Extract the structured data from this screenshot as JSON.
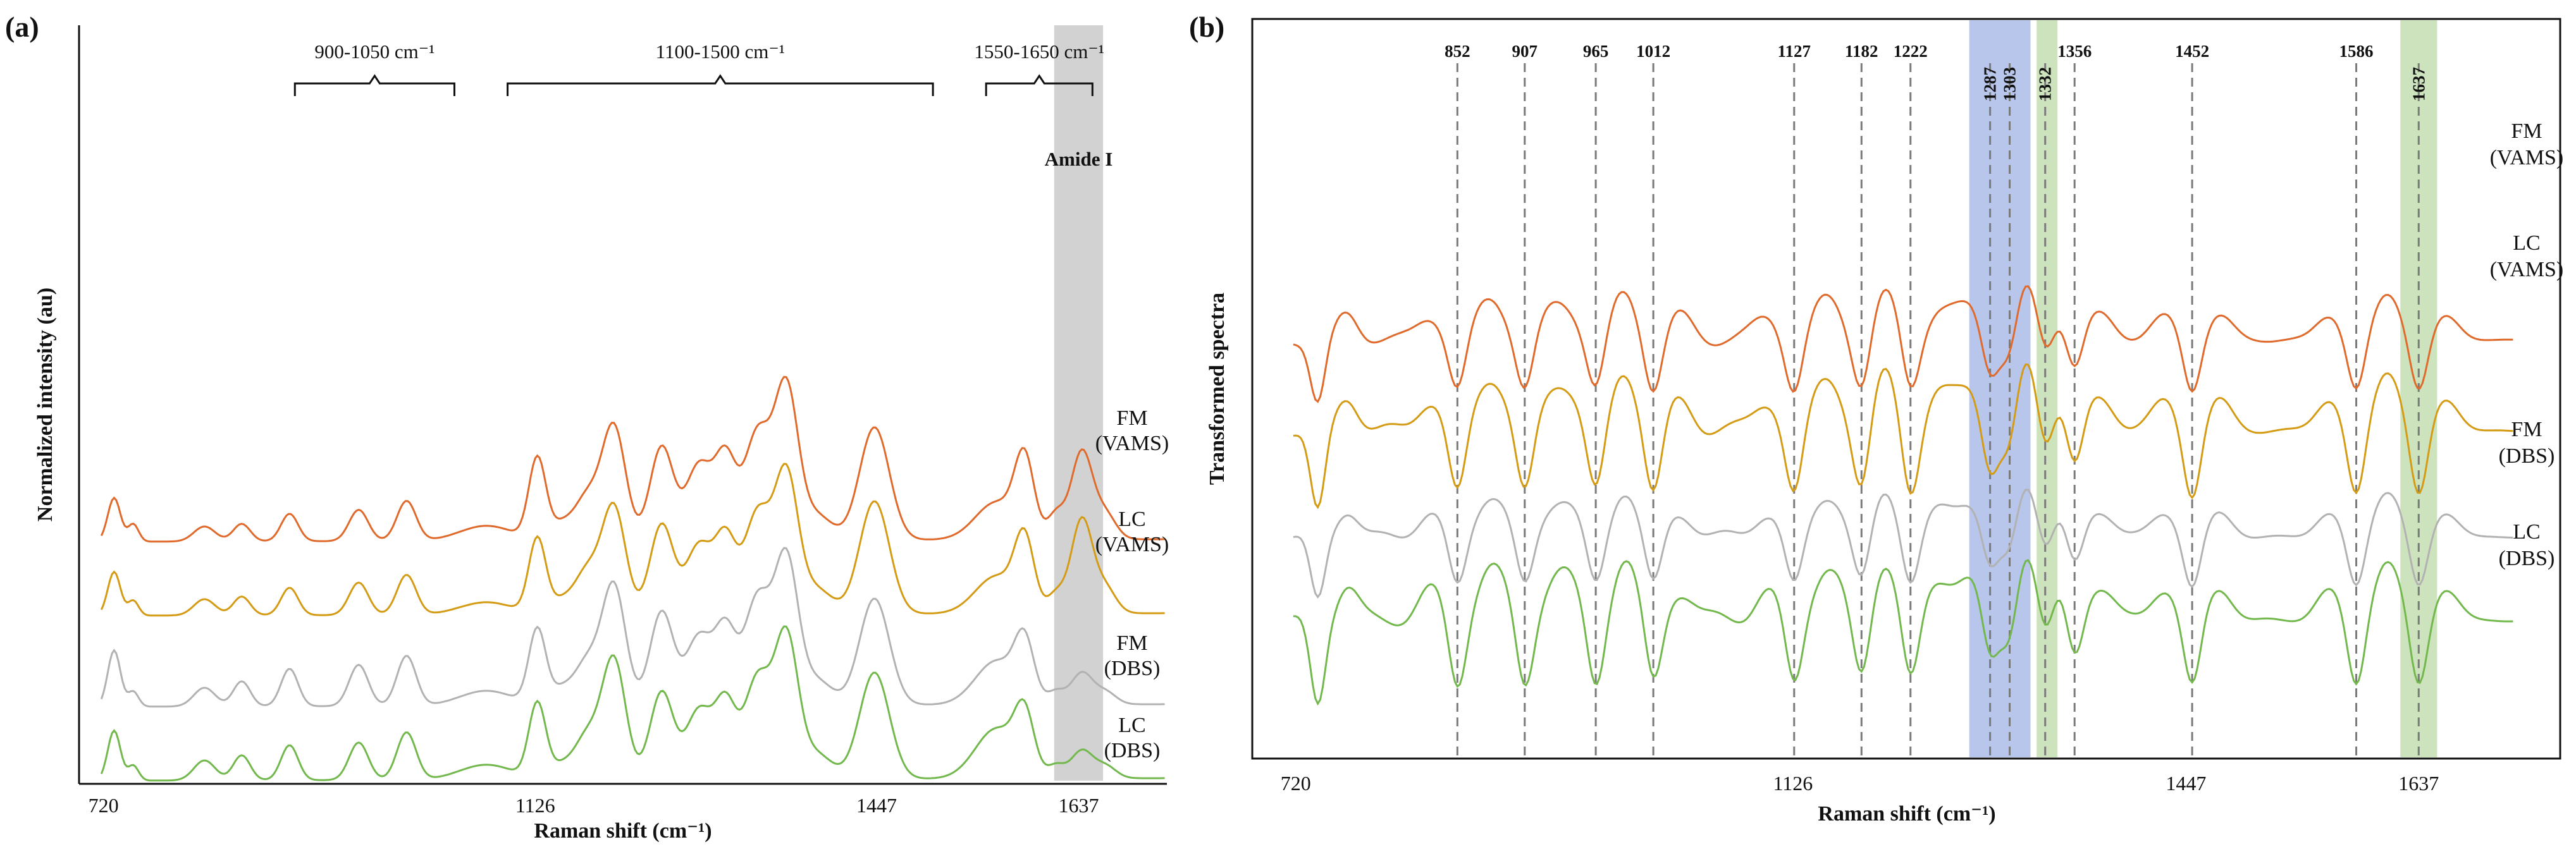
{
  "figure": {
    "panel_a_label": "(a)",
    "panel_b_label": "(b)"
  },
  "colors": {
    "FM_VAMS": "#e06a2c",
    "LC_VAMS": "#d49b15",
    "FM_DBS": "#b2b2b2",
    "LC_DBS": "#72b84c",
    "amide_band": "#d2d2d2",
    "blue_band": "#b7c6ea",
    "green_band": "#cde3bd",
    "guide_line": "#7a7a7a"
  },
  "chart_data": [
    {
      "type": "line",
      "panel": "(a)",
      "title": "",
      "xlabel": "Raman shift (cm⁻¹)",
      "ylabel": "Normalized intensity (au)",
      "xlim": [
        700,
        1720
      ],
      "x_ticks": [
        "720",
        "1126",
        "1447",
        "1637"
      ],
      "x_tick_values": [
        720,
        1126,
        1447,
        1637
      ],
      "grid": false,
      "series": [
        {
          "name": "FM (VAMS)",
          "label_lines": [
            "FM",
            "(VAMS)"
          ],
          "offset": 2.1,
          "scale": 1.1,
          "peaks": [
            [
              730,
              0.35,
              6
            ],
            [
              748,
              0.14,
              5
            ],
            [
              815,
              0.12,
              10
            ],
            [
              850,
              0.14,
              8
            ],
            [
              895,
              0.22,
              8
            ],
            [
              960,
              0.25,
              9
            ],
            [
              1005,
              0.32,
              9
            ],
            [
              1080,
              0.12,
              25
            ],
            [
              1128,
              0.65,
              8
            ],
            [
              1150,
              0.12,
              10
            ],
            [
              1175,
              0.35,
              12
            ],
            [
              1200,
              0.9,
              11
            ],
            [
              1245,
              0.75,
              11
            ],
            [
              1280,
              0.6,
              12
            ],
            [
              1305,
              0.65,
              10
            ],
            [
              1335,
              0.85,
              12
            ],
            [
              1362,
              1.2,
              11
            ],
            [
              1390,
              0.2,
              15
            ],
            [
              1445,
              0.9,
              14
            ],
            [
              1560,
              0.3,
              20
            ],
            [
              1586,
              0.6,
              9
            ],
            [
              1616,
              0.2,
              8
            ],
            [
              1640,
              0.7,
              10
            ],
            [
              1662,
              0.2,
              10
            ]
          ]
        },
        {
          "name": "LC (VAMS)",
          "label_lines": [
            "LC",
            "(VAMS)"
          ],
          "offset": 1.45,
          "scale": 1.1,
          "peaks": [
            [
              730,
              0.35,
              6
            ],
            [
              748,
              0.12,
              5
            ],
            [
              815,
              0.13,
              10
            ],
            [
              850,
              0.15,
              8
            ],
            [
              895,
              0.22,
              8
            ],
            [
              960,
              0.26,
              9
            ],
            [
              1005,
              0.32,
              9
            ],
            [
              1080,
              0.1,
              25
            ],
            [
              1128,
              0.6,
              8
            ],
            [
              1150,
              0.1,
              10
            ],
            [
              1175,
              0.35,
              12
            ],
            [
              1200,
              0.85,
              11
            ],
            [
              1245,
              0.72,
              11
            ],
            [
              1280,
              0.55,
              12
            ],
            [
              1305,
              0.6,
              10
            ],
            [
              1335,
              0.8,
              12
            ],
            [
              1362,
              1.1,
              11
            ],
            [
              1390,
              0.2,
              15
            ],
            [
              1445,
              0.9,
              14
            ],
            [
              1560,
              0.3,
              20
            ],
            [
              1586,
              0.55,
              9
            ],
            [
              1616,
              0.15,
              8
            ],
            [
              1640,
              0.75,
              10
            ],
            [
              1662,
              0.2,
              10
            ]
          ]
        },
        {
          "name": "FM (DBS)",
          "label_lines": [
            "FM",
            "(DBS)"
          ],
          "offset": 0.65,
          "scale": 1.1,
          "peaks": [
            [
              730,
              0.45,
              6
            ],
            [
              748,
              0.12,
              5
            ],
            [
              815,
              0.15,
              10
            ],
            [
              850,
              0.2,
              8
            ],
            [
              895,
              0.3,
              8
            ],
            [
              960,
              0.33,
              9
            ],
            [
              1005,
              0.4,
              9
            ],
            [
              1080,
              0.12,
              25
            ],
            [
              1128,
              0.6,
              8
            ],
            [
              1150,
              0.12,
              10
            ],
            [
              1175,
              0.35,
              12
            ],
            [
              1200,
              0.95,
              11
            ],
            [
              1245,
              0.75,
              11
            ],
            [
              1280,
              0.55,
              12
            ],
            [
              1305,
              0.6,
              10
            ],
            [
              1335,
              0.85,
              12
            ],
            [
              1362,
              1.15,
              11
            ],
            [
              1390,
              0.2,
              15
            ],
            [
              1445,
              0.85,
              14
            ],
            [
              1560,
              0.35,
              20
            ],
            [
              1586,
              0.45,
              9
            ],
            [
              1616,
              0.1,
              8
            ],
            [
              1640,
              0.25,
              10
            ],
            [
              1662,
              0.1,
              10
            ]
          ]
        },
        {
          "name": "LC (DBS)",
          "label_lines": [
            "LC",
            "(DBS)"
          ],
          "offset": 0.0,
          "scale": 1.1,
          "peaks": [
            [
              730,
              0.4,
              6
            ],
            [
              748,
              0.12,
              5
            ],
            [
              815,
              0.16,
              10
            ],
            [
              850,
              0.2,
              8
            ],
            [
              895,
              0.28,
              8
            ],
            [
              960,
              0.3,
              9
            ],
            [
              1005,
              0.38,
              9
            ],
            [
              1080,
              0.12,
              25
            ],
            [
              1128,
              0.6,
              8
            ],
            [
              1150,
              0.1,
              10
            ],
            [
              1175,
              0.35,
              12
            ],
            [
              1200,
              0.95,
              11
            ],
            [
              1245,
              0.7,
              11
            ],
            [
              1280,
              0.55,
              12
            ],
            [
              1305,
              0.6,
              10
            ],
            [
              1335,
              0.8,
              12
            ],
            [
              1362,
              1.12,
              11
            ],
            [
              1390,
              0.2,
              15
            ],
            [
              1445,
              0.85,
              14
            ],
            [
              1560,
              0.4,
              20
            ],
            [
              1586,
              0.45,
              9
            ],
            [
              1616,
              0.1,
              8
            ],
            [
              1640,
              0.22,
              10
            ],
            [
              1662,
              0.1,
              10
            ]
          ]
        }
      ],
      "regions": [
        {
          "label": "900-1050 cm⁻¹",
          "from": 900,
          "to": 1050
        },
        {
          "label": "1100-1500 cm⁻¹",
          "from": 1100,
          "to": 1500
        },
        {
          "label": "1550-1650 cm⁻¹",
          "from": 1550,
          "to": 1650
        }
      ],
      "shaded_bands": [
        {
          "label": "Amide I",
          "from": 1614,
          "to": 1660,
          "color_key": "amide_band"
        }
      ]
    },
    {
      "type": "line",
      "panel": "(b)",
      "title": "",
      "xlabel": "Raman shift (cm⁻¹)",
      "ylabel": "Transformed spectra",
      "xlim": [
        700,
        1720
      ],
      "x_ticks": [
        "720",
        "1126",
        "1447",
        "1637"
      ],
      "x_tick_values": [
        720,
        1126,
        1447,
        1637
      ],
      "grid": false,
      "peak_labels": [
        "852",
        "907",
        "965",
        "1012",
        "1127",
        "1182",
        "1222",
        "1287",
        "1303",
        "1332",
        "1356",
        "1452",
        "1586",
        "1637"
      ],
      "peak_positions": [
        852,
        907,
        965,
        1012,
        1127,
        1182,
        1222,
        1287,
        1303,
        1332,
        1356,
        1452,
        1586,
        1637
      ],
      "rotated_peak_labels": [
        "1287",
        "1303",
        "1332",
        "1637"
      ],
      "shaded_bands": [
        {
          "from": 1270,
          "to": 1320,
          "color_key": "blue_band"
        },
        {
          "from": 1325,
          "to": 1342,
          "color_key": "green_band"
        },
        {
          "from": 1622,
          "to": 1652,
          "color_key": "green_band"
        }
      ],
      "series": [
        {
          "name": "FM (VAMS)",
          "label_lines": [
            "FM",
            "(VAMS)"
          ],
          "offset": 4.1,
          "amplitude": 1.0
        },
        {
          "name": "LC (VAMS)",
          "label_lines": [
            "LC",
            "(VAMS)"
          ],
          "offset": 2.9,
          "amplitude": 1.3
        },
        {
          "name": "FM (DBS)",
          "label_lines": [
            "FM",
            "(DBS)"
          ],
          "offset": 1.5,
          "amplitude": 1.0
        },
        {
          "name": "LC (DBS)",
          "label_lines": [
            "LC",
            "(DBS)"
          ],
          "offset": 0.4,
          "amplitude": 1.3
        }
      ]
    }
  ]
}
